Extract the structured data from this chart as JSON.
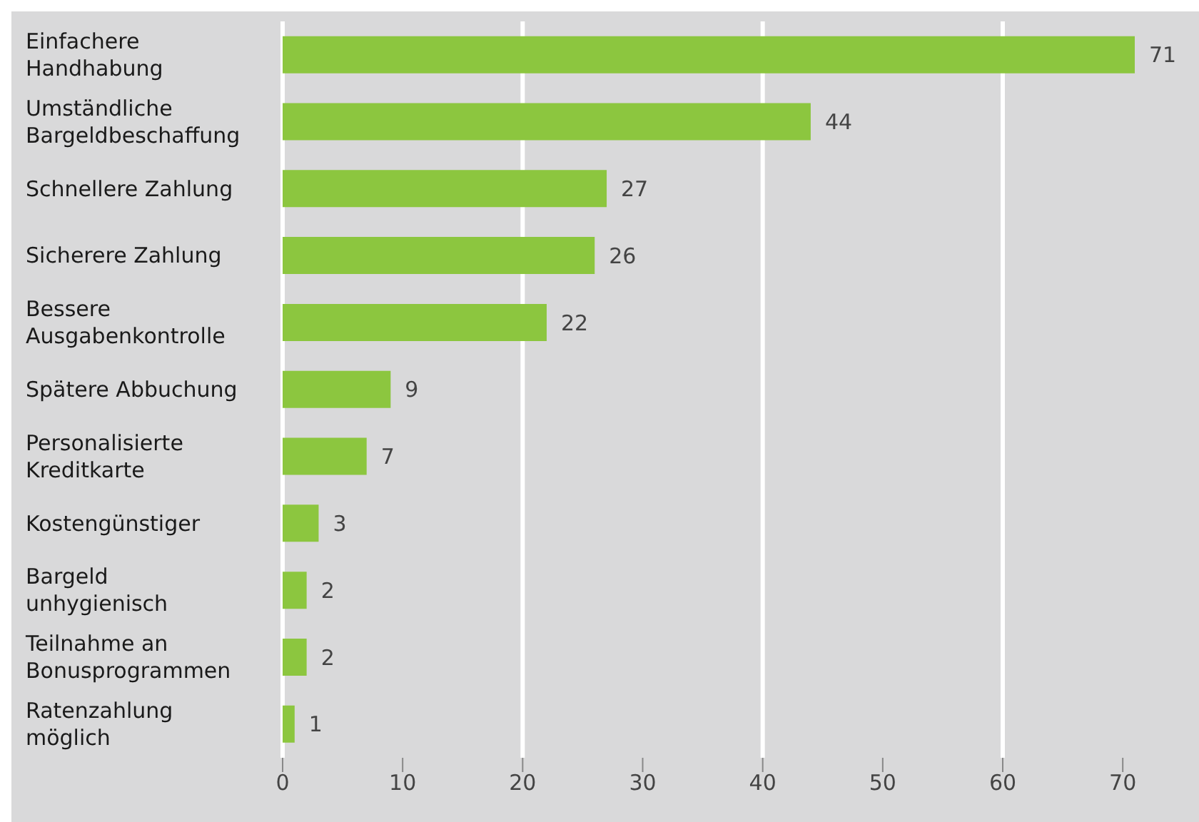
{
  "chart_data": {
    "type": "bar",
    "orientation": "horizontal",
    "categories": [
      "Einfachere Handhabung",
      "Umständliche Bargeldbeschaffung",
      "Schnellere Zahlung",
      "Sicherere Zahlung",
      "Bessere Ausgabenkontrolle",
      "Spätere Abbuchung",
      "Personalisierte Kreditkarte",
      "Kostengünstiger",
      "Bargeld unhygienisch",
      "Teilnahme an Bonusprogrammen",
      "Ratenzahlung möglich"
    ],
    "values": [
      71,
      44,
      27,
      26,
      22,
      9,
      7,
      3,
      2,
      2,
      1
    ],
    "color": "#8cc63f",
    "xlim": [
      0,
      71
    ],
    "xticks": [
      0,
      10,
      20,
      30,
      40,
      50,
      60,
      70
    ],
    "grid": "x",
    "data_labels": true
  }
}
